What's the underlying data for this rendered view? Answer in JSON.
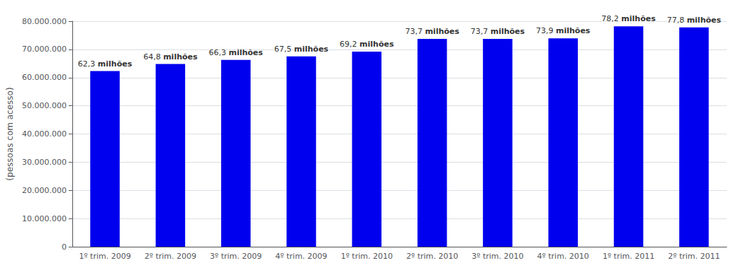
{
  "chart_data": {
    "type": "bar",
    "ylabel": "(pessoas com acesso)",
    "categories": [
      "1º trim. 2009",
      "2º trim. 2009",
      "3º trim. 2009",
      "4º trim. 2009",
      "1º trim. 2010",
      "2º trim. 2010",
      "3º trim. 2010",
      "4º trim. 2010",
      "1º trim. 2011",
      "2º trim. 2011"
    ],
    "values": [
      62300000,
      64800000,
      66300000,
      67500000,
      69200000,
      73700000,
      73700000,
      73900000,
      78200000,
      77800000
    ],
    "value_labels": [
      "62,3 milhões",
      "64,8 milhões",
      "66,3 milhões",
      "67,5 milhões",
      "69,2 milhões",
      "73,7 milhões",
      "73,7 milhões",
      "73,9 milhões",
      "78,2 milhões",
      "77,8 milhões"
    ],
    "data_labels": true,
    "color": "#0000ee",
    "ylim": [
      0,
      80000000
    ],
    "yticks": [
      0,
      {
        "value": 10000000,
        "label": "10.000.000"
      },
      {
        "value": 20000000,
        "label": "20.000.000"
      },
      {
        "value": 30000000,
        "label": "30.000.000"
      },
      {
        "value": 40000000,
        "label": "40.000.000"
      },
      {
        "value": 50000000,
        "label": "50.000.000"
      },
      {
        "value": 60000000,
        "label": "60.000.000"
      },
      {
        "value": 70000000,
        "label": "70.000.000"
      },
      {
        "value": 80000000,
        "label": "80.000.000"
      }
    ],
    "grid": true
  }
}
